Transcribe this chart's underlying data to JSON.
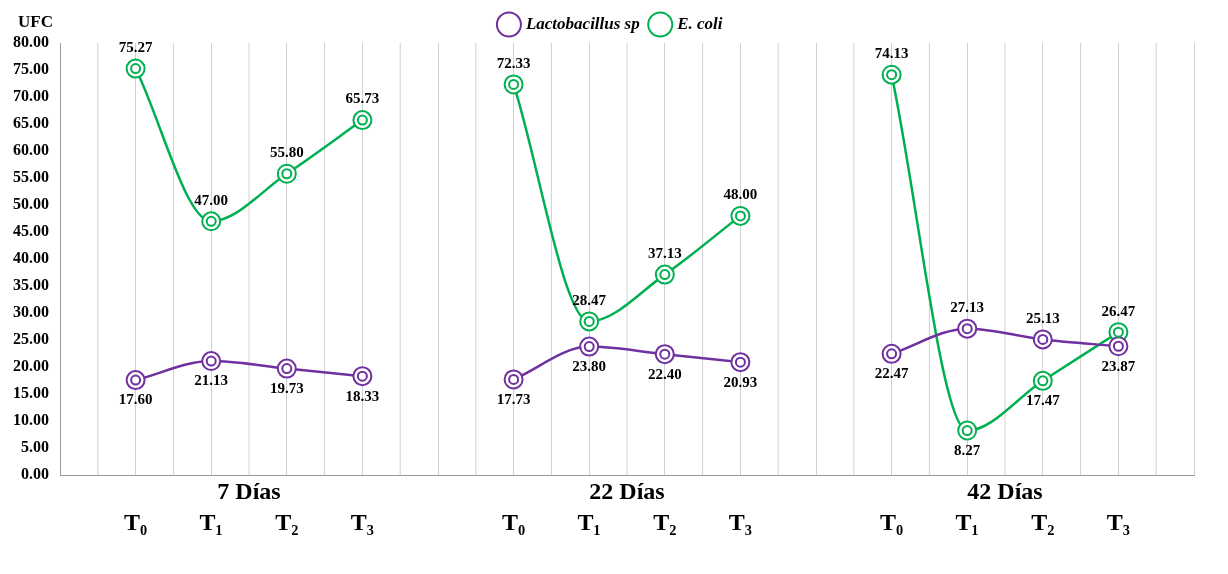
{
  "chart_data": {
    "type": "line",
    "ylabel": "UFC",
    "categories": [
      null,
      "T₀",
      "T₁",
      "T₂",
      "T₃",
      null,
      "T₀",
      "T₁",
      "T₂",
      "T₃",
      null,
      "T₀",
      "T₁",
      "T₂",
      "T₃",
      null
    ],
    "annotations": [
      "7 Días",
      "22 Días",
      "42 Días"
    ],
    "series": [
      {
        "name": "Lactobacillus sp",
        "color": "#7030a0",
        "values": [
          null,
          17.6,
          21.13,
          19.73,
          18.33,
          null,
          17.73,
          23.8,
          22.4,
          20.93,
          null,
          22.47,
          27.13,
          25.13,
          23.87,
          null
        ],
        "value_labels": [
          null,
          "17.60",
          "21.13",
          "19.73",
          "18.33",
          null,
          "17.73",
          "23.80",
          "22.40",
          "20.93",
          null,
          "22.47",
          "27.13",
          "25.13",
          "23.87",
          null
        ]
      },
      {
        "name": "E. coli",
        "color": "#00b050",
        "values": [
          null,
          75.27,
          47.0,
          55.8,
          65.73,
          null,
          72.33,
          28.47,
          37.13,
          48.0,
          null,
          74.13,
          8.27,
          17.47,
          26.47,
          null
        ],
        "value_labels": [
          null,
          "75.27",
          "47.00",
          "55.80",
          "65.73",
          null,
          "72.33",
          "28.47",
          "37.13",
          "48.00",
          null,
          "74.13",
          "8.27",
          "17.47",
          "26.47",
          null
        ]
      }
    ],
    "ylim": [
      0,
      80
    ],
    "yticks": [
      {
        "value": 0,
        "label": "0.00"
      },
      {
        "value": 5,
        "label": "5.00"
      },
      {
        "value": 10,
        "label": "10.00"
      },
      {
        "value": 15,
        "label": "15.00"
      },
      {
        "value": 20,
        "label": "20.00"
      },
      {
        "value": 25,
        "label": "25.00"
      },
      {
        "value": 30,
        "label": "30.00"
      },
      {
        "value": 35,
        "label": "35.00"
      },
      {
        "value": 40,
        "label": "40.00"
      },
      {
        "value": 45,
        "label": "45.00"
      },
      {
        "value": 50,
        "label": "50.00"
      },
      {
        "value": 55,
        "label": "55.00"
      },
      {
        "value": 60,
        "label": "60.00"
      },
      {
        "value": 65,
        "label": "65.00"
      },
      {
        "value": 70,
        "label": "70.00"
      },
      {
        "value": 75,
        "label": "75.00"
      },
      {
        "value": 80,
        "label": "80.00"
      }
    ],
    "grid": "x",
    "legend": "top",
    "marker": "circle",
    "line_style": "solid"
  }
}
